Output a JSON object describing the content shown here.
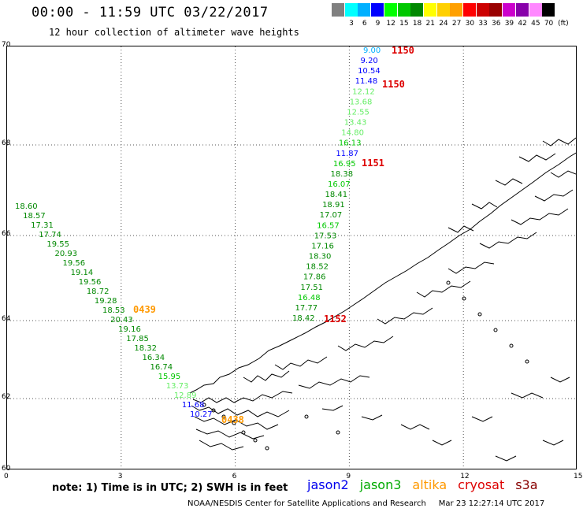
{
  "header": {
    "title": "00:00 - 11:59 UTC 03/22/2017",
    "subtitle": "12 hour collection of altimeter wave heights"
  },
  "color_scale": {
    "unit_label": "(ft)",
    "bins": [
      {
        "label": "",
        "color": "#808080"
      },
      {
        "label": "3",
        "color": "#00ffff"
      },
      {
        "label": "6",
        "color": "#00b0ff"
      },
      {
        "label": "9",
        "color": "#0000ff"
      },
      {
        "label": "12",
        "color": "#00ff00"
      },
      {
        "label": "15",
        "color": "#00c800"
      },
      {
        "label": "18",
        "color": "#008800"
      },
      {
        "label": "21",
        "color": "#ffff00"
      },
      {
        "label": "24",
        "color": "#ffd000"
      },
      {
        "label": "27",
        "color": "#ffa000"
      },
      {
        "label": "30",
        "color": "#ff0000"
      },
      {
        "label": "33",
        "color": "#cc0000"
      },
      {
        "label": "36",
        "color": "#990000"
      },
      {
        "label": "39",
        "color": "#cc00cc"
      },
      {
        "label": "42",
        "color": "#8800aa"
      },
      {
        "label": "45",
        "color": "#ff88ff"
      },
      {
        "label": "70",
        "color": "#000000"
      }
    ]
  },
  "map": {
    "lat_ticks": [
      "70",
      "68",
      "66",
      "64",
      "62",
      "60"
    ],
    "lon_ticks": [
      "0",
      "3",
      "6",
      "9",
      "12",
      "15"
    ],
    "tracks": [
      {
        "satellite": "jason3",
        "time_labels": [
          {
            "text": "0439",
            "color": "#ff9900"
          },
          {
            "text": "0438",
            "color": "#ff9900"
          }
        ],
        "observations": [
          {
            "value": "18.60",
            "color": "#008800"
          },
          {
            "value": "18.57",
            "color": "#008800"
          },
          {
            "value": "17.31",
            "color": "#008800"
          },
          {
            "value": "17.74",
            "color": "#008800"
          },
          {
            "value": "19.55",
            "color": "#008800"
          },
          {
            "value": "20.93",
            "color": "#008800"
          },
          {
            "value": "19.56",
            "color": "#008800"
          },
          {
            "value": "19.14",
            "color": "#008800"
          },
          {
            "value": "19.56",
            "color": "#008800"
          },
          {
            "value": "18.72",
            "color": "#008800"
          },
          {
            "value": "19.28",
            "color": "#008800"
          },
          {
            "value": "18.53",
            "color": "#008800"
          },
          {
            "value": "20.43",
            "color": "#008800"
          },
          {
            "value": "19.16",
            "color": "#008800"
          },
          {
            "value": "17.85",
            "color": "#008800"
          },
          {
            "value": "18.32",
            "color": "#008800"
          },
          {
            "value": "16.34",
            "color": "#008800"
          },
          {
            "value": "16.74",
            "color": "#008800"
          },
          {
            "value": "15.95",
            "color": "#00c800"
          },
          {
            "value": "13.73",
            "color": "#66ee66"
          },
          {
            "value": "12.89",
            "color": "#66ee66"
          },
          {
            "value": "11.68",
            "color": "#0000ff"
          },
          {
            "value": "10.27",
            "color": "#0000ff"
          }
        ]
      },
      {
        "satellite": "cryosat",
        "time_labels": [
          {
            "text": "1150",
            "color": "#dd0000"
          },
          {
            "text": "1150",
            "color": "#dd0000"
          },
          {
            "text": "1151",
            "color": "#dd0000"
          },
          {
            "text": "1152",
            "color": "#dd0000"
          }
        ],
        "observations": [
          {
            "value": "9.00",
            "color": "#00b0ff"
          },
          {
            "value": "9.20",
            "color": "#0000ff"
          },
          {
            "value": "10.54",
            "color": "#0000ff"
          },
          {
            "value": "11.48",
            "color": "#0000ff"
          },
          {
            "value": "12.12",
            "color": "#66ee66"
          },
          {
            "value": "13.68",
            "color": "#66ee66"
          },
          {
            "value": "12.55",
            "color": "#66ee66"
          },
          {
            "value": "13.43",
            "color": "#66ee66"
          },
          {
            "value": "14.80",
            "color": "#66ee66"
          },
          {
            "value": "16.13",
            "color": "#00c800"
          },
          {
            "value": "11.87",
            "color": "#0000ff"
          },
          {
            "value": "16.95",
            "color": "#00c800"
          },
          {
            "value": "18.38",
            "color": "#008800"
          },
          {
            "value": "16.07",
            "color": "#00c800"
          },
          {
            "value": "18.41",
            "color": "#008800"
          },
          {
            "value": "18.91",
            "color": "#008800"
          },
          {
            "value": "17.07",
            "color": "#008800"
          },
          {
            "value": "16.57",
            "color": "#00c800"
          },
          {
            "value": "17.53",
            "color": "#008800"
          },
          {
            "value": "17.16",
            "color": "#008800"
          },
          {
            "value": "18.30",
            "color": "#008800"
          },
          {
            "value": "18.52",
            "color": "#008800"
          },
          {
            "value": "17.86",
            "color": "#008800"
          },
          {
            "value": "17.51",
            "color": "#008800"
          },
          {
            "value": "16.48",
            "color": "#00c800"
          },
          {
            "value": "17.77",
            "color": "#008800"
          },
          {
            "value": "18.42",
            "color": "#008800"
          }
        ]
      }
    ]
  },
  "note": "note: 1) Time is in UTC; 2) SWH is in feet",
  "legend": [
    {
      "name": "jason2",
      "color": "#0000ee"
    },
    {
      "name": "jason3",
      "color": "#00aa00"
    },
    {
      "name": "altika",
      "color": "#ff9900"
    },
    {
      "name": "cryosat",
      "color": "#dd0000"
    },
    {
      "name": "s3a",
      "color": "#880000"
    }
  ],
  "footer": {
    "agency": "NOAA/NESDIS Center for Satellite Applications and Research",
    "timestamp": "Mar 23 12:27:14 UTC 2017"
  }
}
